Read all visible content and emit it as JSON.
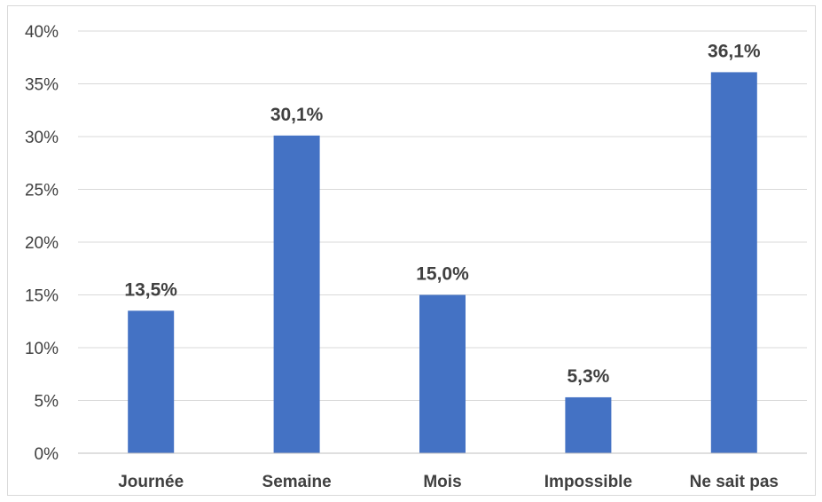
{
  "chart_data": {
    "type": "bar",
    "title": "",
    "xlabel": "",
    "ylabel": "",
    "categories": [
      "Journée",
      "Semaine",
      "Mois",
      "Impossible",
      "Ne sait pas"
    ],
    "values": [
      13.5,
      30.1,
      15.0,
      5.3,
      36.1
    ],
    "value_labels": [
      "13,5%",
      "30,1%",
      "15,0%",
      "5,3%",
      "36,1%"
    ],
    "ylim": [
      0,
      40
    ],
    "yticks": [
      0,
      5,
      10,
      15,
      20,
      25,
      30,
      35,
      40
    ],
    "ytick_labels": [
      "0%",
      "5%",
      "10%",
      "15%",
      "20%",
      "25%",
      "30%",
      "35%",
      "40%"
    ],
    "grid": true,
    "legend": "none",
    "bar_color": "#4472C4",
    "grid_color": "#d9d9d9"
  }
}
